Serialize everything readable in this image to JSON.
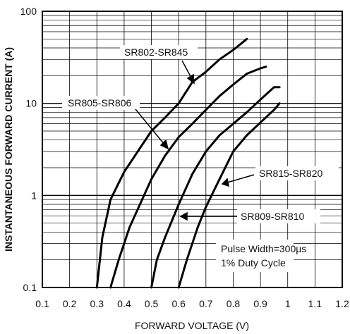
{
  "chart_data": {
    "type": "line",
    "xlabel": "FORWARD VOLTAGE (V)",
    "ylabel": "INSTANTANEOUS FORWARD CURRENT (A)",
    "xlim": [
      0.1,
      1.2
    ],
    "ylim": [
      0.1,
      100
    ],
    "y_scale": "log",
    "x_ticks": [
      "0.1",
      "0.2",
      "0.3",
      "0.4",
      "0.5",
      "0.6",
      "0.7",
      "0.8",
      "0.9",
      "1",
      "1.1",
      "1.2"
    ],
    "y_ticks": [
      "0.1",
      "1",
      "10",
      "100"
    ],
    "grid": true,
    "series": [
      {
        "name": "SR802-SR845",
        "x": [
          0.3,
          0.32,
          0.35,
          0.4,
          0.45,
          0.5,
          0.55,
          0.6,
          0.65,
          0.7,
          0.75,
          0.8,
          0.85
        ],
        "y": [
          0.1,
          0.35,
          0.9,
          1.8,
          3.0,
          5.0,
          7.0,
          10.0,
          17.0,
          22.0,
          30.0,
          38.0,
          50.0
        ]
      },
      {
        "name": "SR805-SR806",
        "x": [
          0.35,
          0.38,
          0.42,
          0.5,
          0.55,
          0.6,
          0.65,
          0.7,
          0.75,
          0.8,
          0.85,
          0.9,
          0.92
        ],
        "y": [
          0.1,
          0.2,
          0.45,
          1.5,
          2.7,
          4.3,
          6.0,
          8.5,
          12.0,
          16.0,
          21.0,
          24.0,
          25.0
        ]
      },
      {
        "name": "SR815-SR820",
        "x": [
          0.5,
          0.52,
          0.55,
          0.6,
          0.65,
          0.7,
          0.75,
          0.8,
          0.85,
          0.9,
          0.95,
          0.97
        ],
        "y": [
          0.1,
          0.2,
          0.35,
          0.8,
          1.7,
          3.0,
          4.5,
          6.0,
          8.0,
          11.0,
          15.0,
          15.0
        ]
      },
      {
        "name": "SR809-SR810",
        "x": [
          0.6,
          0.63,
          0.67,
          0.7,
          0.75,
          0.8,
          0.85,
          0.9,
          0.95,
          0.97
        ],
        "y": [
          0.1,
          0.2,
          0.45,
          0.75,
          1.5,
          3.0,
          4.5,
          6.2,
          8.5,
          10.0
        ]
      }
    ],
    "annotations": [
      "Pulse Width=300µs",
      "1% Duty Cycle"
    ]
  }
}
